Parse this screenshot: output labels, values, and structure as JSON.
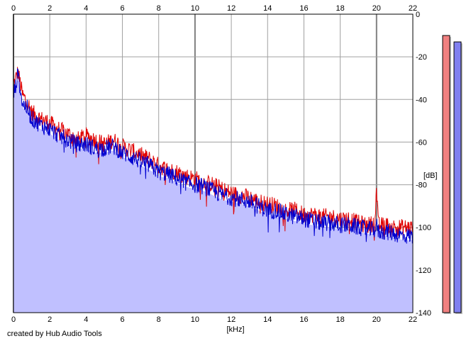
{
  "chart_data": {
    "type": "area",
    "title": "",
    "xlabel": "[kHz]",
    "ylabel": "[dB]",
    "xlim": [
      0,
      22
    ],
    "ylim": [
      -140,
      0
    ],
    "x_ticks": [
      0,
      2,
      4,
      6,
      8,
      10,
      12,
      14,
      16,
      18,
      20,
      22
    ],
    "y_ticks": [
      0,
      -20,
      -40,
      -60,
      -80,
      -100,
      -120,
      -140
    ],
    "grid": true,
    "x": [
      0,
      0.25,
      0.5,
      0.75,
      1,
      1.5,
      2,
      2.5,
      3,
      3.5,
      4,
      4.5,
      5,
      5.5,
      6,
      6.5,
      7,
      7.5,
      8,
      8.5,
      9,
      9.5,
      10,
      10.5,
      11,
      11.5,
      12,
      12.5,
      13,
      13.5,
      14,
      14.5,
      15,
      15.5,
      16,
      16.5,
      17,
      17.5,
      18,
      18.5,
      19,
      19.5,
      19.9,
      20,
      20.1,
      20.5,
      21,
      21.5,
      22
    ],
    "series": [
      {
        "color": "#e00000",
        "values": [
          -33,
          -27,
          -38,
          -41,
          -46,
          -49,
          -51,
          -54,
          -56,
          -59,
          -57,
          -59,
          -61,
          -59,
          -62,
          -64,
          -66,
          -68,
          -71,
          -73,
          -74,
          -76,
          -77,
          -79,
          -80,
          -82,
          -84,
          -85,
          -86,
          -88,
          -89,
          -90,
          -92,
          -92,
          -94,
          -94,
          -95,
          -95,
          -96,
          -96,
          -98,
          -99,
          -98,
          -82,
          -99,
          -99,
          -100,
          -100,
          -100
        ]
      },
      {
        "color": "#0000d0",
        "values": [
          -38,
          -28,
          -42,
          -44,
          -49,
          -52,
          -54,
          -57,
          -59,
          -61,
          -61,
          -63,
          -63,
          -62,
          -65,
          -67,
          -69,
          -71,
          -74,
          -75,
          -77,
          -79,
          -80,
          -81,
          -83,
          -85,
          -86,
          -87,
          -88,
          -90,
          -92,
          -92,
          -94,
          -95,
          -96,
          -97,
          -98,
          -98,
          -99,
          -99,
          -100,
          -101,
          -101,
          -99,
          -102,
          -102,
          -103,
          -104,
          -104
        ]
      }
    ],
    "fill_color": "#c0c0ff",
    "meters": [
      {
        "color": "#f08080",
        "level_db": -10
      },
      {
        "color": "#8080f0",
        "level_db": -13
      }
    ]
  },
  "footer": {
    "credit": "created by Hub Audio Tools"
  }
}
